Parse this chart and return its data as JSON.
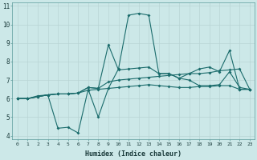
{
  "title": "",
  "xlabel": "Humidex (Indice chaleur)",
  "ylabel": "",
  "bg_color": "#cce8e8",
  "grid_color": "#b8d4d4",
  "line_color": "#1a6b6b",
  "xlim": [
    -0.5,
    23.5
  ],
  "ylim": [
    3.8,
    11.2
  ],
  "xticks": [
    0,
    1,
    2,
    3,
    4,
    5,
    6,
    7,
    8,
    9,
    10,
    11,
    12,
    13,
    14,
    15,
    16,
    17,
    18,
    19,
    20,
    21,
    22,
    23
  ],
  "yticks": [
    4,
    5,
    6,
    7,
    8,
    9,
    10,
    11
  ],
  "line1": [
    6.0,
    6.0,
    6.15,
    6.2,
    4.4,
    4.45,
    4.15,
    6.5,
    5.0,
    6.55,
    7.6,
    10.5,
    10.6,
    10.5,
    7.35,
    7.35,
    7.1,
    7.35,
    7.6,
    7.7,
    7.45,
    8.6,
    6.5,
    6.5
  ],
  "line2": [
    6.0,
    6.0,
    6.1,
    6.2,
    6.25,
    6.25,
    6.3,
    6.6,
    6.55,
    8.9,
    7.55,
    7.6,
    7.65,
    7.7,
    7.35,
    7.35,
    7.1,
    7.0,
    6.7,
    6.7,
    6.75,
    7.45,
    6.6,
    6.5
  ],
  "line3": [
    6.0,
    6.0,
    6.1,
    6.2,
    6.25,
    6.25,
    6.3,
    6.6,
    6.55,
    6.9,
    7.0,
    7.05,
    7.1,
    7.15,
    7.2,
    7.25,
    7.3,
    7.35,
    7.35,
    7.4,
    7.5,
    7.55,
    7.6,
    6.5
  ],
  "line4": [
    6.0,
    6.0,
    6.1,
    6.2,
    6.25,
    6.25,
    6.3,
    6.45,
    6.5,
    6.55,
    6.6,
    6.65,
    6.7,
    6.75,
    6.7,
    6.65,
    6.6,
    6.6,
    6.65,
    6.65,
    6.7,
    6.7,
    6.5,
    6.5
  ]
}
